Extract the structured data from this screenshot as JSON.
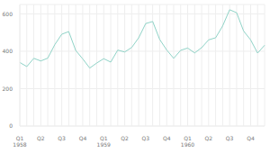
{
  "chart_data": {
    "type": "line",
    "categories": [
      "Q1 1958",
      null,
      null,
      "Q2",
      null,
      null,
      "Q3",
      null,
      null,
      "Q4",
      null,
      null,
      "Q1 1959",
      null,
      null,
      "Q2",
      null,
      null,
      "Q3",
      null,
      null,
      "Q4",
      null,
      null,
      "Q1 1960",
      null,
      null,
      "Q2",
      null,
      null,
      "Q3",
      null,
      null,
      "Q4",
      null,
      null
    ],
    "values": [
      340,
      318,
      362,
      348,
      363,
      435,
      491,
      505,
      404,
      359,
      310,
      337,
      360,
      342,
      406,
      396,
      420,
      472,
      548,
      559,
      463,
      407,
      362,
      405,
      417,
      391,
      419,
      461,
      472,
      535,
      622,
      606,
      508,
      461,
      390,
      432
    ],
    "color": "#8fd3c7",
    "ylim": [
      0,
      650
    ],
    "yticks": [
      0,
      200,
      400,
      600
    ],
    "grid": true
  }
}
